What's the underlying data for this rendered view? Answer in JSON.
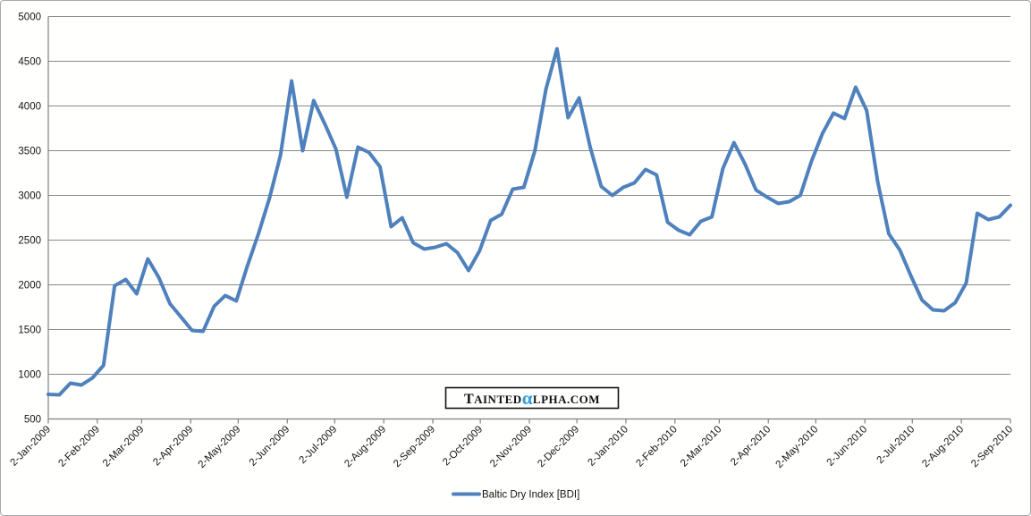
{
  "chart_data": {
    "type": "line",
    "title": "",
    "xlabel": "",
    "ylabel": "",
    "ylim": [
      500,
      5000
    ],
    "y_ticks": [
      5000,
      4500,
      4000,
      3500,
      3000,
      2500,
      2000,
      1500,
      1000,
      500
    ],
    "grid": true,
    "legend_position": "bottom",
    "x_axis_span_days": 608,
    "x_ticks": [
      {
        "label": "2-Jan-2009",
        "day": 0
      },
      {
        "label": "2-Feb-2009",
        "day": 31
      },
      {
        "label": "2-Mar-2009",
        "day": 59
      },
      {
        "label": "2-Apr-2009",
        "day": 90
      },
      {
        "label": "2-May-2009",
        "day": 120
      },
      {
        "label": "2-Jun-2009",
        "day": 151
      },
      {
        "label": "2-Jul-2009",
        "day": 181
      },
      {
        "label": "2-Aug-2009",
        "day": 212
      },
      {
        "label": "2-Sep-2009",
        "day": 243
      },
      {
        "label": "2-Oct-2009",
        "day": 273
      },
      {
        "label": "2-Nov-2009",
        "day": 304
      },
      {
        "label": "2-Dec-2009",
        "day": 334
      },
      {
        "label": "2-Jan-2010",
        "day": 365
      },
      {
        "label": "2-Feb-2010",
        "day": 396
      },
      {
        "label": "2-Mar-2010",
        "day": 424
      },
      {
        "label": "2-Apr-2010",
        "day": 455
      },
      {
        "label": "2-May-2010",
        "day": 485
      },
      {
        "label": "2-Jun-2010",
        "day": 516
      },
      {
        "label": "2-Jul-2010",
        "day": 546
      },
      {
        "label": "2-Aug-2010",
        "day": 577
      },
      {
        "label": "2-Sep-2010",
        "day": 608
      }
    ],
    "series": [
      {
        "name": "Baltic Dry Index [BDI]",
        "color": "#4F81BD",
        "sampling": "weekly",
        "start": "2-Jan-2009",
        "end": "2-Sep-2010",
        "values": [
          775,
          770,
          900,
          880,
          960,
          1100,
          1990,
          2060,
          1900,
          2290,
          2080,
          1790,
          1640,
          1490,
          1480,
          1760,
          1880,
          1820,
          2210,
          2570,
          2970,
          3450,
          4280,
          3500,
          4060,
          3800,
          3520,
          2980,
          3540,
          3480,
          3320,
          2650,
          2750,
          2470,
          2400,
          2420,
          2460,
          2360,
          2160,
          2380,
          2720,
          2790,
          3070,
          3090,
          3500,
          4190,
          4640,
          3870,
          4090,
          3540,
          3100,
          3000,
          3090,
          3140,
          3290,
          3230,
          2700,
          2610,
          2560,
          2710,
          2760,
          3300,
          3590,
          3350,
          3060,
          2980,
          2910,
          2930,
          3000,
          3380,
          3690,
          3920,
          3860,
          4210,
          3950,
          3150,
          2570,
          2390,
          2100,
          1830,
          1720,
          1710,
          1800,
          2020,
          2800,
          2730,
          2760,
          2890
        ]
      }
    ]
  },
  "legend": {
    "label": "Baltic Dry Index [BDI]"
  },
  "watermark": {
    "part1": "T",
    "part2": "AINTED",
    "alpha": "α",
    "part3": "LPHA.COM",
    "alpha_color": "#2E9CD6"
  },
  "colors": {
    "line": "#4F81BD",
    "gridline": "#898989",
    "axis": "#808080",
    "text": "#151515",
    "frame_border": "#A8A8A8",
    "background": "#FFFFFF"
  }
}
